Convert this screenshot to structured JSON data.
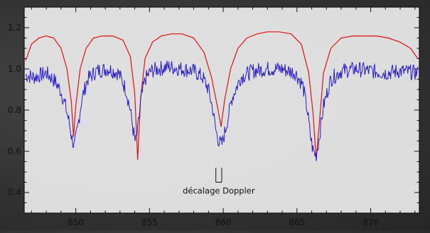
{
  "chart_data": {
    "type": "line",
    "title": "",
    "xlabel": "",
    "ylabel": "",
    "xlim": [
      846.5,
      873.3
    ],
    "ylim": [
      0.3,
      1.3
    ],
    "x_ticks": [
      850,
      855,
      860,
      865,
      870
    ],
    "y_ticks": [
      0.4,
      0.6,
      0.8,
      1.0,
      1.2
    ],
    "grid": false,
    "legend": "none",
    "annotation": {
      "text": "décalage Doppler",
      "x_left": 859.5,
      "x_right": 859.9,
      "y_top": 0.52,
      "y_bottom": 0.45
    },
    "series": [
      {
        "color": "#e01010",
        "x": [
          846.6,
          847.0,
          847.5,
          848.0,
          848.5,
          849.0,
          849.4,
          849.7,
          849.85,
          850.0,
          850.3,
          850.7,
          851.2,
          851.8,
          852.5,
          853.2,
          853.7,
          854.0,
          854.2,
          854.4,
          854.7,
          855.2,
          855.8,
          856.5,
          857.2,
          858.0,
          858.7,
          859.2,
          859.6,
          859.85,
          860.1,
          860.5,
          861.0,
          861.6,
          862.3,
          863.0,
          863.8,
          864.6,
          865.3,
          865.8,
          866.1,
          866.3,
          866.5,
          866.8,
          867.3,
          868.0,
          868.8,
          869.6,
          870.4,
          871.2,
          872.0,
          872.7,
          873.2
        ],
        "y": [
          1.04,
          1.12,
          1.15,
          1.16,
          1.15,
          1.1,
          1.0,
          0.84,
          0.67,
          0.82,
          1.0,
          1.1,
          1.15,
          1.16,
          1.16,
          1.14,
          1.06,
          0.88,
          0.56,
          0.86,
          1.05,
          1.13,
          1.16,
          1.17,
          1.17,
          1.15,
          1.08,
          0.96,
          0.82,
          0.72,
          0.85,
          1.0,
          1.1,
          1.15,
          1.17,
          1.18,
          1.18,
          1.17,
          1.12,
          0.98,
          0.78,
          0.56,
          0.72,
          0.98,
          1.1,
          1.15,
          1.16,
          1.16,
          1.16,
          1.15,
          1.13,
          1.1,
          1.05
        ]
      },
      {
        "color": "#2a1ccc",
        "x": [
          846.6,
          847.2,
          848.0,
          848.6,
          849.0,
          849.3,
          849.55,
          849.75,
          849.9,
          850.1,
          850.4,
          850.8,
          851.4,
          852.2,
          852.9,
          853.4,
          853.7,
          853.9,
          854.05,
          854.2,
          854.4,
          854.7,
          855.1,
          855.6,
          856.3,
          857.2,
          858.0,
          858.6,
          859.0,
          859.3,
          859.5,
          859.7,
          859.9,
          860.2,
          860.6,
          861.2,
          862.0,
          863.0,
          864.0,
          864.9,
          865.4,
          865.7,
          865.9,
          866.1,
          866.3,
          866.5,
          866.8,
          867.3,
          868.0,
          869.0,
          870.0,
          871.0,
          872.0,
          873.2
        ],
        "y": [
          0.97,
          0.96,
          0.98,
          0.94,
          0.89,
          0.82,
          0.74,
          0.66,
          0.62,
          0.7,
          0.85,
          0.95,
          0.99,
          1.0,
          0.98,
          0.9,
          0.8,
          0.7,
          0.64,
          0.7,
          0.84,
          0.95,
          0.99,
          1.0,
          1.01,
          1.0,
          0.99,
          0.96,
          0.9,
          0.8,
          0.7,
          0.65,
          0.63,
          0.72,
          0.86,
          0.96,
          0.99,
          1.0,
          1.0,
          0.98,
          0.92,
          0.8,
          0.68,
          0.6,
          0.58,
          0.66,
          0.82,
          0.95,
          0.99,
          1.0,
          0.99,
          0.98,
          0.99,
          0.98
        ]
      }
    ]
  }
}
